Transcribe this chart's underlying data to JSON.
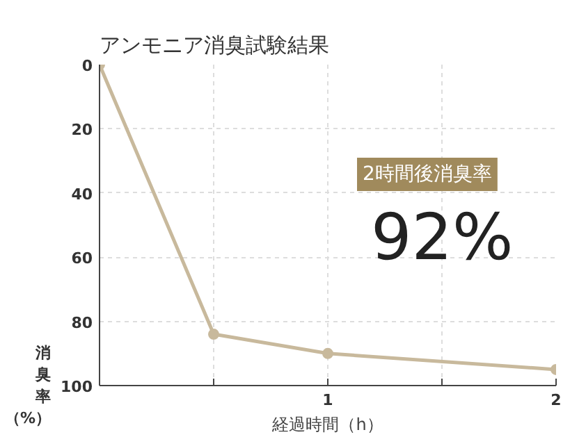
{
  "chart_data": {
    "type": "line",
    "title": "アンモニア消臭試験結果",
    "xlabel": "経過時間（h）",
    "ylabel": "消臭率（%）",
    "x": [
      0,
      0.5,
      1,
      2
    ],
    "series": [
      {
        "color": "#c8b99c",
        "values": [
          0,
          84,
          90,
          95
        ]
      }
    ],
    "xlim": [
      0,
      2
    ],
    "xticks": [
      {
        "value": 0.5,
        "label": null
      },
      1,
      {
        "value": 1.5,
        "label": null
      },
      2
    ],
    "ylim": [
      100,
      0
    ],
    "yticks": [
      0,
      20,
      40,
      60,
      80,
      100
    ],
    "grid": true,
    "marker": "circle",
    "line_style": "solid",
    "annotations": [
      "2時間後消臭率",
      "92%"
    ]
  }
}
